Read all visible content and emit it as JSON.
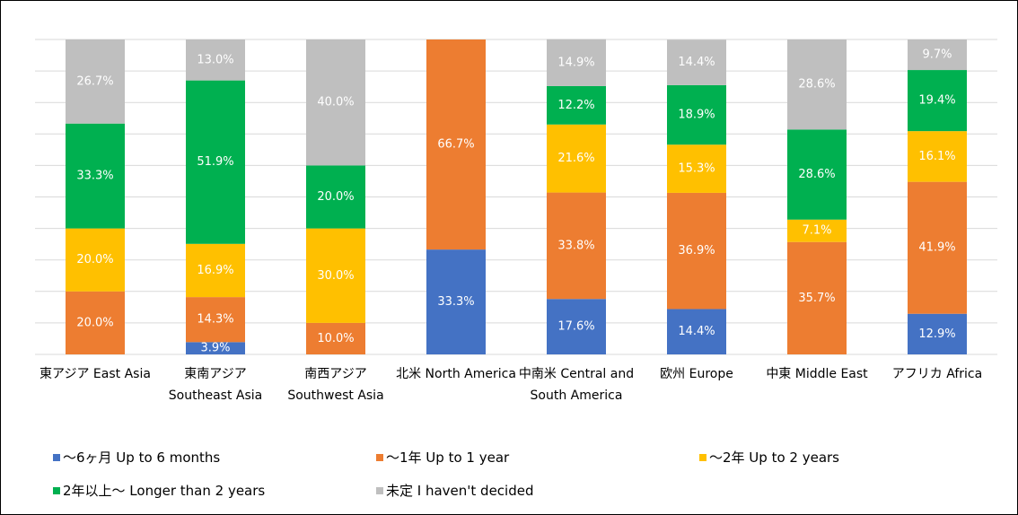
{
  "chart_data": {
    "type": "stacked_bar",
    "categories": [
      "東アジア East Asia",
      "東南アジア Southeast Asia",
      "南西アジア Southwest Asia",
      "北米 North America",
      "中南米 Central and South America",
      "欧州 Europe",
      "中東 Middle East",
      "アフリカ Africa"
    ],
    "series": [
      {
        "name": "～6ヶ月 Up to 6 months",
        "color": "#4472c4",
        "values": [
          0,
          3.9,
          0,
          33.3,
          17.6,
          14.4,
          0,
          12.9
        ],
        "value_labels": [
          null,
          "3.9%",
          null,
          "33.3%",
          "17.6%",
          "14.4%",
          null,
          "12.9%"
        ]
      },
      {
        "name": "～1年 Up to 1 year",
        "color": "#ed7d31",
        "values": [
          20.0,
          14.3,
          10.0,
          66.7,
          33.8,
          36.9,
          35.7,
          41.9
        ],
        "value_labels": [
          "20.0%",
          "14.3%",
          "10.0%",
          "66.7%",
          "33.8%",
          "36.9%",
          "35.7%",
          "41.9%"
        ]
      },
      {
        "name": "～2年 Up to 2 years",
        "color": "#ffc000",
        "values": [
          20.0,
          16.9,
          30.0,
          0,
          21.6,
          15.3,
          7.1,
          16.1
        ],
        "value_labels": [
          "20.0%",
          "16.9%",
          "30.0%",
          null,
          "21.6%",
          "15.3%",
          "7.1%",
          "16.1%"
        ]
      },
      {
        "name": "2年以上～ Longer than 2 years",
        "color": "#00b050",
        "values": [
          33.3,
          51.9,
          20.0,
          0,
          12.2,
          18.9,
          28.6,
          19.4
        ],
        "value_labels": [
          "33.3%",
          "51.9%",
          "20.0%",
          null,
          "12.2%",
          "18.9%",
          "28.6%",
          "19.4%"
        ]
      },
      {
        "name": "未定 I haven't decided",
        "color": "#bfbfbf",
        "values": [
          26.7,
          13.0,
          40.0,
          0,
          14.9,
          14.4,
          28.6,
          9.7
        ],
        "value_labels": [
          "26.7%",
          "13.0%",
          "40.0%",
          null,
          "14.9%",
          "14.4%",
          "28.6%",
          "9.7%"
        ]
      }
    ],
    "ylim": [
      0,
      100
    ],
    "yticks": [
      0,
      10,
      20,
      30,
      40,
      50,
      60,
      70,
      80,
      90,
      100
    ],
    "grid": true
  }
}
